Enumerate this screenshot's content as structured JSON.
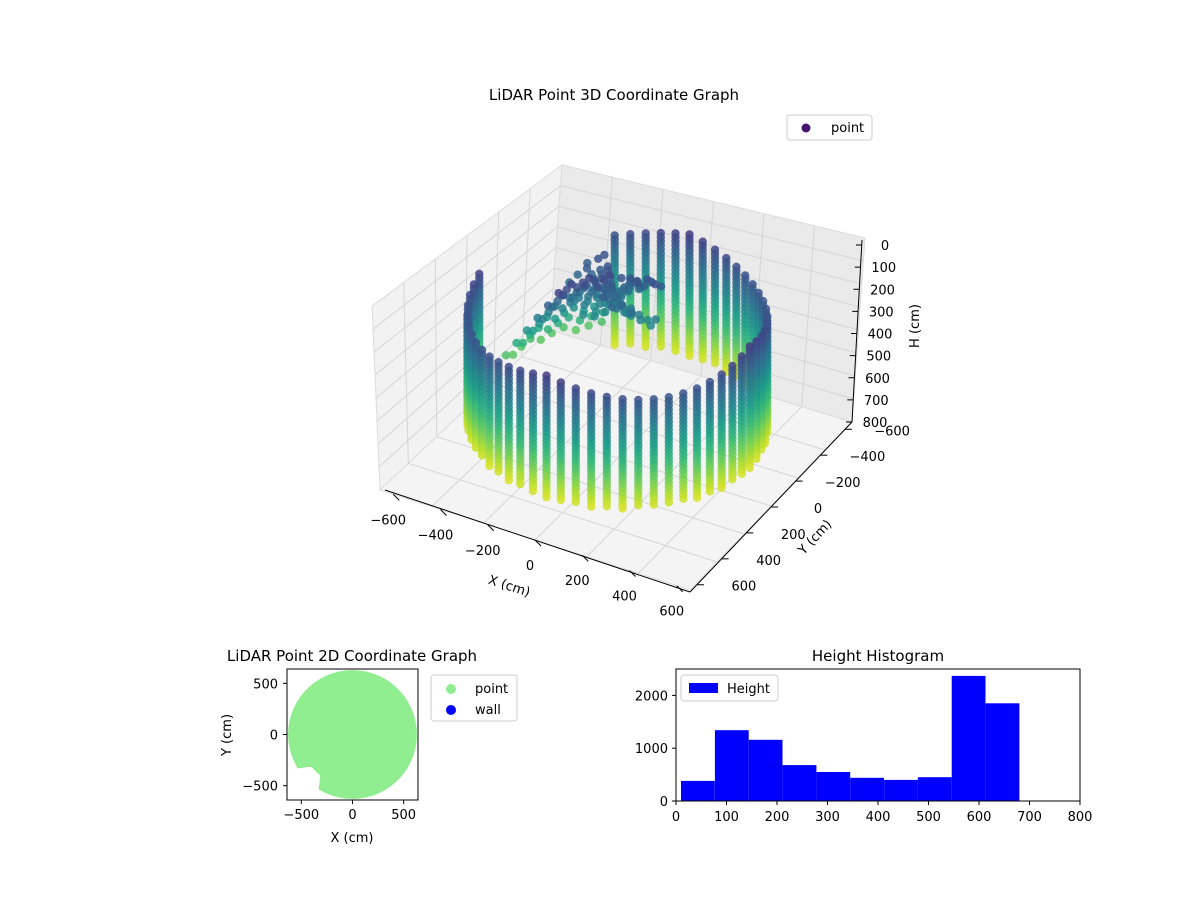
{
  "chart_data": [
    {
      "type": "scatter",
      "title": "LiDAR Point 3D Coordinate Graph",
      "xlabel": "X (cm)",
      "ylabel": "Y (cm)",
      "zlabel": "H (cm)",
      "xlim": [
        -650,
        650
      ],
      "ylim": [
        -650,
        650
      ],
      "zlim": [
        0,
        800
      ],
      "z_inverted": true,
      "x_ticks": [
        "−600",
        "−400",
        "−200",
        "0",
        "200",
        "400",
        "600"
      ],
      "y_ticks": [
        "−600",
        "−400",
        "−200",
        "0",
        "200",
        "400",
        "600"
      ],
      "z_ticks": [
        "0",
        "100",
        "200",
        "300",
        "400",
        "500",
        "600",
        "700",
        "800"
      ],
      "colormap": "viridis",
      "grid": true,
      "legend": {
        "placement": "upper-right",
        "entries": [
          {
            "label": "point",
            "color": "#46156e"
          }
        ]
      }
    },
    {
      "type": "scatter",
      "title": "LiDAR Point 2D Coordinate Graph",
      "xlabel": "X (cm)",
      "ylabel": "Y (cm)",
      "xlim": [
        -640,
        640
      ],
      "ylim": [
        -640,
        640
      ],
      "x_ticks": [
        "−500",
        "0",
        "500"
      ],
      "y_ticks": [
        "−500",
        "0",
        "500"
      ],
      "series": [
        {
          "name": "point",
          "color": "#90ee90",
          "shape": "filled disk of radius about 600 cm centered at (0,0), notch on left side near (-300,-300)"
        },
        {
          "name": "wall",
          "color": "#0000ff",
          "points": []
        }
      ],
      "legend": {
        "placement": "outside-right",
        "entries": [
          {
            "label": "point",
            "color": "#90ee90"
          },
          {
            "label": "wall",
            "color": "#0000ff"
          }
        ]
      }
    },
    {
      "type": "bar",
      "title": "Height Histogram",
      "xlim": [
        0,
        800
      ],
      "ylim": [
        0,
        2500
      ],
      "x_ticks": [
        "0",
        "100",
        "200",
        "300",
        "400",
        "500",
        "600",
        "700",
        "800"
      ],
      "y_ticks": [
        "0",
        "1000",
        "2000"
      ],
      "bin_edges": [
        10,
        77,
        144,
        211,
        278,
        345,
        412,
        479,
        546,
        613,
        680
      ],
      "values": [
        380,
        1340,
        1160,
        680,
        550,
        440,
        400,
        450,
        2370,
        1850
      ],
      "series": [
        {
          "name": "Height",
          "color": "#0000ff"
        }
      ],
      "legend": {
        "placement": "upper-left",
        "entries": [
          {
            "label": "Height",
            "color": "#0000ff"
          }
        ]
      }
    }
  ]
}
